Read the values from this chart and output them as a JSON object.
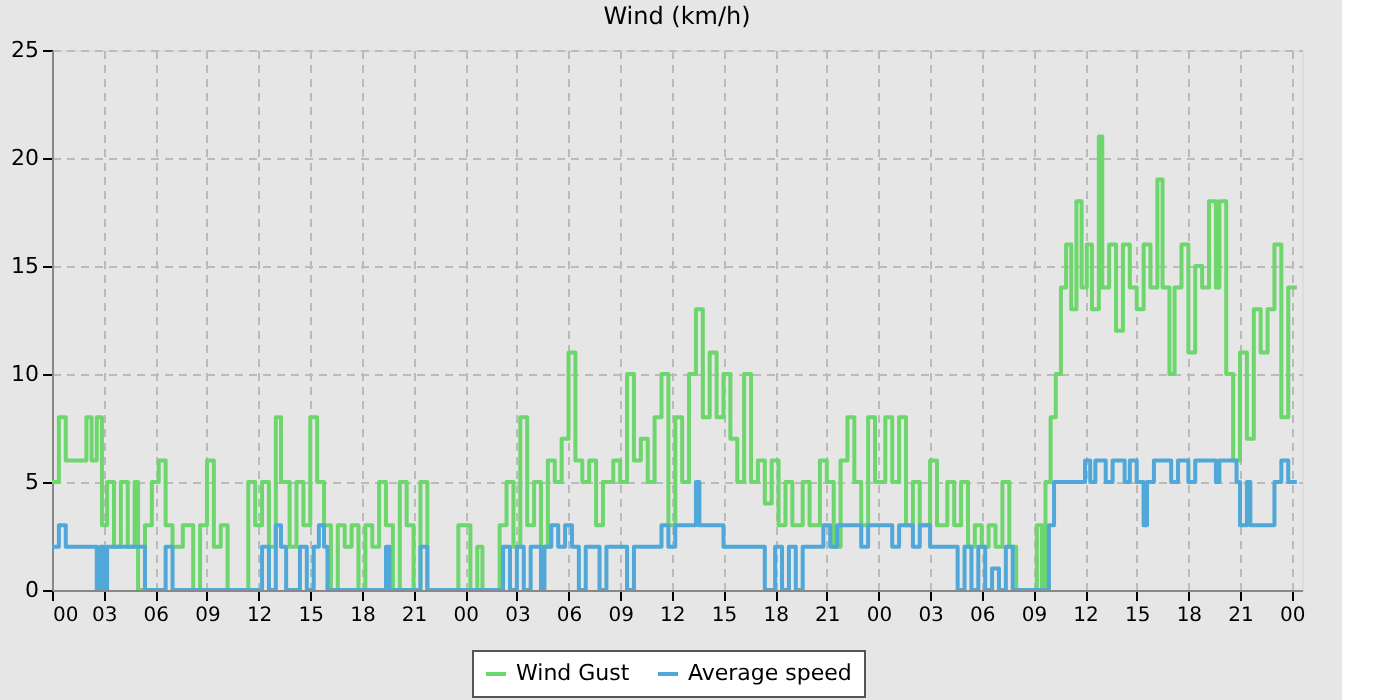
{
  "chart_data": {
    "type": "step",
    "title": "Wind (km/h)",
    "xlim": [
      0,
      72.6
    ],
    "ylim": [
      0,
      25
    ],
    "yticks": [
      0,
      5,
      10,
      15,
      20,
      25
    ],
    "xticks": [
      {
        "value": 0,
        "label": "00"
      },
      {
        "value": 3,
        "label": "03"
      },
      {
        "value": 6,
        "label": "06"
      },
      {
        "value": 9,
        "label": "09"
      },
      {
        "value": 12,
        "label": "12"
      },
      {
        "value": 15,
        "label": "15"
      },
      {
        "value": 18,
        "label": "18"
      },
      {
        "value": 21,
        "label": "21"
      },
      {
        "value": 24,
        "label": "00"
      },
      {
        "value": 27,
        "label": "03"
      },
      {
        "value": 30,
        "label": "06"
      },
      {
        "value": 33,
        "label": "09"
      },
      {
        "value": 36,
        "label": "12"
      },
      {
        "value": 39,
        "label": "15"
      },
      {
        "value": 42,
        "label": "18"
      },
      {
        "value": 45,
        "label": "21"
      },
      {
        "value": 48,
        "label": "00"
      },
      {
        "value": 51,
        "label": "03"
      },
      {
        "value": 54,
        "label": "06"
      },
      {
        "value": 57,
        "label": "09"
      },
      {
        "value": 60,
        "label": "12"
      },
      {
        "value": 63,
        "label": "15"
      },
      {
        "value": 66,
        "label": "18"
      },
      {
        "value": 69,
        "label": "21"
      },
      {
        "value": 72,
        "label": "00"
      }
    ],
    "grid": true,
    "legend": "bottom",
    "line_style": "solid",
    "marker": "none",
    "series": [
      {
        "name": "Wind Gust",
        "color": "#6dd66d",
        "x": [
          0,
          0.4,
          0.8,
          1.6,
          2.0,
          2.3,
          2.6,
          2.9,
          3.2,
          3.6,
          4.0,
          4.4,
          4.8,
          5.0,
          5.4,
          5.8,
          6.2,
          6.6,
          7.0,
          7.6,
          8.2,
          8.6,
          9.0,
          9.4,
          9.8,
          10.2,
          11.0,
          11.4,
          11.8,
          12.2,
          12.6,
          13.0,
          13.3,
          13.8,
          14.2,
          14.6,
          15.0,
          15.4,
          15.8,
          16.2,
          16.6,
          17.0,
          17.4,
          17.8,
          18.2,
          18.6,
          19.0,
          19.4,
          19.8,
          20.2,
          20.6,
          21.0,
          21.4,
          21.8,
          23.6,
          24.0,
          24.3,
          24.7,
          25.0,
          26.0,
          26.4,
          26.8,
          27.2,
          27.6,
          28.0,
          28.4,
          28.8,
          29.2,
          29.6,
          30.0,
          30.4,
          30.8,
          31.2,
          31.6,
          32.0,
          32.6,
          33.0,
          33.4,
          33.8,
          34.2,
          34.6,
          35.0,
          35.4,
          35.8,
          36.2,
          36.6,
          37.0,
          37.4,
          37.8,
          38.2,
          38.6,
          39.0,
          39.4,
          39.8,
          40.2,
          40.6,
          41.0,
          41.4,
          41.8,
          42.2,
          42.6,
          43.0,
          43.6,
          44.0,
          44.6,
          45.0,
          45.4,
          45.8,
          46.2,
          46.6,
          47.0,
          47.4,
          47.8,
          48.0,
          48.4,
          48.8,
          49.2,
          49.6,
          50.0,
          50.4,
          51.0,
          51.4,
          52.0,
          52.4,
          52.8,
          53.2,
          53.6,
          54.0,
          54.4,
          54.8,
          55.2,
          55.6,
          56.0,
          57.2,
          57.5,
          57.7,
          58.0,
          58.3,
          58.6,
          58.9,
          59.2,
          59.5,
          59.8,
          60.1,
          60.4,
          60.8,
          61.0,
          61.4,
          61.8,
          62.2,
          62.6,
          63.0,
          63.4,
          63.8,
          64.2,
          64.5,
          64.9,
          65.2,
          65.6,
          66.0,
          66.4,
          66.8,
          67.2,
          67.6,
          67.8,
          68.2,
          68.6,
          69.0,
          69.4,
          69.8,
          70.2,
          70.6,
          71.0,
          71.4,
          71.8,
          72.3
        ],
        "values": [
          5,
          8,
          6,
          6,
          8,
          6,
          8,
          3,
          5,
          2,
          5,
          2,
          5,
          0,
          3,
          5,
          6,
          3,
          2,
          3,
          0,
          3,
          6,
          2,
          3,
          0,
          0,
          5,
          3,
          5,
          2,
          8,
          5,
          2,
          5,
          3,
          8,
          5,
          3,
          0,
          3,
          2,
          3,
          0,
          3,
          2,
          5,
          3,
          0,
          5,
          3,
          0,
          5,
          0,
          3,
          3,
          0,
          2,
          0,
          3,
          5,
          2,
          8,
          3,
          5,
          2,
          6,
          5,
          7,
          11,
          6,
          5,
          6,
          3,
          5,
          6,
          5,
          10,
          6,
          7,
          5,
          8,
          10,
          3,
          8,
          5,
          10,
          13,
          8,
          11,
          8,
          10,
          7,
          5,
          10,
          5,
          6,
          4,
          6,
          3,
          5,
          3,
          5,
          3,
          6,
          5,
          2,
          6,
          8,
          5,
          3,
          8,
          5,
          5,
          8,
          5,
          8,
          3,
          5,
          3,
          6,
          3,
          5,
          3,
          5,
          2,
          3,
          2,
          3,
          2,
          5,
          2,
          0,
          3,
          0,
          5,
          8,
          10,
          14,
          16,
          13,
          18,
          14,
          16,
          13,
          21,
          14,
          16,
          12,
          16,
          14,
          13,
          16,
          14,
          19,
          14,
          10,
          14,
          16,
          11,
          15,
          14,
          18,
          14,
          18,
          10,
          6,
          11,
          7,
          13,
          11,
          13,
          16,
          8,
          14,
          14
        ]
      },
      {
        "name": "Average speed",
        "color": "#4fa8d8",
        "x": [
          0,
          0.4,
          0.8,
          2.4,
          2.6,
          2.8,
          3.0,
          3.2,
          5.0,
          5.4,
          6.6,
          7.0,
          12.2,
          12.6,
          13.0,
          13.3,
          13.6,
          14.4,
          14.8,
          15.2,
          15.5,
          15.8,
          16.0,
          19.4,
          19.6,
          21.4,
          21.8,
          26.2,
          26.6,
          27.0,
          27.4,
          27.8,
          28.4,
          28.6,
          29.0,
          29.4,
          29.8,
          30.2,
          30.6,
          31.0,
          31.8,
          32.2,
          33.4,
          33.8,
          35.4,
          35.8,
          36.2,
          37.4,
          37.6,
          39.0,
          41.4,
          42.0,
          42.4,
          42.8,
          43.2,
          43.6,
          44.8,
          45.2,
          45.6,
          47.0,
          47.4,
          48.8,
          49.2,
          50.0,
          50.4,
          51.0,
          52.6,
          53.0,
          53.4,
          53.8,
          54.2,
          54.6,
          55.0,
          55.4,
          55.8,
          57.9,
          58.2,
          60.0,
          60.3,
          60.6,
          61.2,
          61.6,
          62.3,
          62.6,
          63.0,
          63.4,
          63.6,
          64.0,
          65.0,
          65.4,
          66.0,
          66.4,
          67.6,
          67.8,
          68.8,
          69.0,
          69.4,
          69.6,
          71.0,
          71.4,
          71.8,
          72.3
        ],
        "values": [
          2,
          3,
          2,
          2,
          0,
          2,
          0,
          2,
          2,
          0,
          2,
          0,
          2,
          0,
          3,
          2,
          0,
          2,
          0,
          2,
          3,
          2,
          0,
          2,
          0,
          2,
          0,
          2,
          0,
          2,
          0,
          2,
          0,
          2,
          3,
          2,
          3,
          2,
          0,
          2,
          0,
          2,
          0,
          2,
          3,
          2,
          3,
          5,
          3,
          2,
          0,
          2,
          0,
          2,
          0,
          2,
          3,
          2,
          3,
          2,
          3,
          2,
          3,
          2,
          3,
          2,
          0,
          2,
          0,
          2,
          0,
          1,
          0,
          2,
          0,
          3,
          5,
          6,
          5,
          6,
          5,
          6,
          5,
          6,
          5,
          3,
          5,
          6,
          5,
          6,
          5,
          6,
          5,
          6,
          5,
          3,
          5,
          3,
          5,
          6,
          5,
          5
        ]
      }
    ]
  }
}
